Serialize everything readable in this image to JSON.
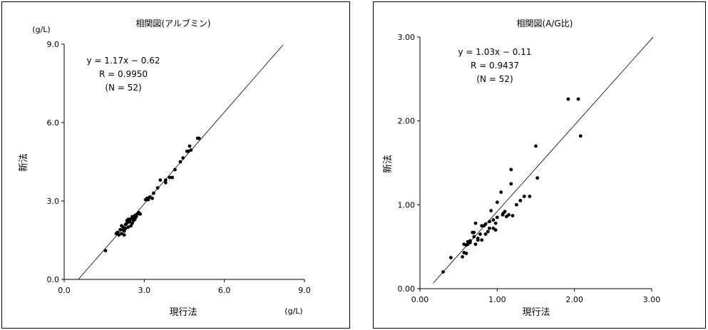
{
  "chart_data": [
    {
      "type": "scatter",
      "title": "相関図(アルブミン)",
      "xlabel": "現行法",
      "ylabel": "新法",
      "xunit": "(g/L)",
      "yunit": "(g/L)",
      "xlim": [
        0,
        9
      ],
      "ylim": [
        0,
        9
      ],
      "xticks": [
        "0.0",
        "3.0",
        "6.0",
        "9.0"
      ],
      "yticks": [
        "0.0",
        "3.0",
        "6.0",
        "9.0"
      ],
      "annotations": [
        "y = 1.17x − 0.62",
        "R = 0.9950",
        "(N = 52)"
      ],
      "regression": {
        "slope": 1.17,
        "intercept": -0.62,
        "x_range": [
          0.53,
          8.2
        ]
      },
      "grid": false,
      "points": [
        [
          1.55,
          1.1
        ],
        [
          1.95,
          1.75
        ],
        [
          2.0,
          1.8
        ],
        [
          2.05,
          1.7
        ],
        [
          2.1,
          1.9
        ],
        [
          2.15,
          1.75
        ],
        [
          2.2,
          2.0
        ],
        [
          2.25,
          1.85
        ],
        [
          2.25,
          1.7
        ],
        [
          2.3,
          1.95
        ],
        [
          2.3,
          2.1
        ],
        [
          2.35,
          2.15
        ],
        [
          2.4,
          2.0
        ],
        [
          2.45,
          2.2
        ],
        [
          2.45,
          2.3
        ],
        [
          2.5,
          2.05
        ],
        [
          2.5,
          2.3
        ],
        [
          2.55,
          2.15
        ],
        [
          2.6,
          2.25
        ],
        [
          2.6,
          2.35
        ],
        [
          2.65,
          2.45
        ],
        [
          2.7,
          2.4
        ],
        [
          2.75,
          2.5
        ],
        [
          2.8,
          2.55
        ],
        [
          2.55,
          2.4
        ],
        [
          2.35,
          2.25
        ],
        [
          2.2,
          1.9
        ],
        [
          2.4,
          2.3
        ],
        [
          3.05,
          3.05
        ],
        [
          3.1,
          3.1
        ],
        [
          3.2,
          3.15
        ],
        [
          3.3,
          3.1
        ],
        [
          3.35,
          3.3
        ],
        [
          3.5,
          3.5
        ],
        [
          3.6,
          3.8
        ],
        [
          3.8,
          3.7
        ],
        [
          3.8,
          3.8
        ],
        [
          3.95,
          3.9
        ],
        [
          4.05,
          3.9
        ],
        [
          4.15,
          4.2
        ],
        [
          4.35,
          4.5
        ],
        [
          4.45,
          4.65
        ],
        [
          4.6,
          4.9
        ],
        [
          4.7,
          5.1
        ],
        [
          4.75,
          4.95
        ],
        [
          5.0,
          5.4
        ],
        [
          5.05,
          5.4
        ],
        [
          2.15,
          2.05
        ],
        [
          2.65,
          2.3
        ],
        [
          3.15,
          3.05
        ],
        [
          4.65,
          4.9
        ],
        [
          2.85,
          2.5
        ]
      ]
    },
    {
      "type": "scatter",
      "title": "相関図(A/G比)",
      "xlabel": "現行法",
      "ylabel": "新法",
      "xlim": [
        0,
        3
      ],
      "ylim": [
        0,
        3
      ],
      "xticks": [
        "0.00",
        "1.00",
        "2.00",
        "3.00"
      ],
      "yticks": [
        "0.00",
        "1.00",
        "2.00",
        "3.00"
      ],
      "annotations": [
        "y = 1.03x − 0.11",
        "R = 0.9437",
        "(N = 52)"
      ],
      "regression": {
        "slope": 1.03,
        "intercept": -0.11,
        "x_range": [
          0.17,
          3.02
        ]
      },
      "grid": false,
      "points": [
        [
          0.3,
          0.2
        ],
        [
          0.4,
          0.37
        ],
        [
          0.55,
          0.38
        ],
        [
          0.57,
          0.43
        ],
        [
          0.57,
          0.53
        ],
        [
          0.6,
          0.52
        ],
        [
          0.6,
          0.42
        ],
        [
          0.62,
          0.56
        ],
        [
          0.65,
          0.57
        ],
        [
          0.65,
          0.55
        ],
        [
          0.68,
          0.67
        ],
        [
          0.7,
          0.62
        ],
        [
          0.72,
          0.53
        ],
        [
          0.72,
          0.78
        ],
        [
          0.75,
          0.58
        ],
        [
          0.78,
          0.65
        ],
        [
          0.8,
          0.58
        ],
        [
          0.8,
          0.75
        ],
        [
          0.85,
          0.77
        ],
        [
          0.88,
          0.68
        ],
        [
          0.9,
          0.72
        ],
        [
          0.9,
          0.8
        ],
        [
          0.92,
          0.93
        ],
        [
          0.95,
          0.82
        ],
        [
          0.98,
          0.7
        ],
        [
          0.98,
          0.78
        ],
        [
          1.0,
          0.85
        ],
        [
          1.0,
          1.03
        ],
        [
          1.05,
          1.15
        ],
        [
          1.07,
          0.88
        ],
        [
          1.1,
          0.92
        ],
        [
          1.12,
          0.86
        ],
        [
          1.15,
          0.88
        ],
        [
          1.18,
          1.25
        ],
        [
          1.18,
          1.42
        ],
        [
          1.2,
          0.87
        ],
        [
          1.25,
          1.0
        ],
        [
          1.3,
          1.05
        ],
        [
          1.35,
          1.1
        ],
        [
          1.42,
          1.1
        ],
        [
          1.5,
          1.7
        ],
        [
          1.52,
          1.32
        ],
        [
          1.92,
          2.26
        ],
        [
          2.05,
          2.26
        ],
        [
          2.08,
          1.82
        ],
        [
          0.85,
          0.65
        ],
        [
          0.7,
          0.67
        ],
        [
          0.62,
          0.53
        ],
        [
          0.95,
          0.72
        ],
        [
          1.08,
          0.9
        ],
        [
          0.75,
          0.6
        ],
        [
          0.83,
          0.75
        ]
      ]
    }
  ]
}
